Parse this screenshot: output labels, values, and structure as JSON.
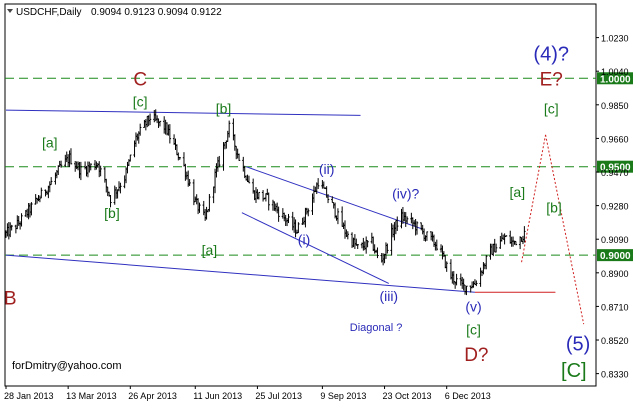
{
  "header": {
    "symbol_text": "USDCHF,Daily",
    "ohlc_text": "0.9094 0.9123 0.9094 0.9122"
  },
  "chart_data": {
    "type": "candlestick",
    "symbol": "USDCHF",
    "timeframe": "Daily",
    "last_price": 0.9122,
    "ylim": [
      0.826,
      1.042
    ],
    "y_ticks": [
      "1.0230",
      "1.0040",
      "0.9850",
      "0.9660",
      "0.9470",
      "0.9280",
      "0.9090",
      "0.8900",
      "0.8710",
      "0.8520",
      "0.8330"
    ],
    "x_ticks": [
      "28 Jan 2013",
      "13 Mar 2013",
      "26 Apr 2013",
      "11 Jun 2013",
      "25 Jul 2013",
      "9 Sep 2013",
      "23 Oct 2013",
      "6 Dec 2013"
    ],
    "price_path": [
      {
        "date": "2013-01-28",
        "price": 0.912
      },
      {
        "date": "2013-02-06",
        "price": 0.918
      },
      {
        "date": "2013-02-18",
        "price": 0.93
      },
      {
        "date": "2013-03-01",
        "price": 0.941
      },
      {
        "date": "2013-03-08",
        "price": 0.95
      },
      {
        "date": "2013-03-14",
        "price": 0.955
      },
      {
        "date": "2013-03-22",
        "price": 0.948
      },
      {
        "date": "2013-04-03",
        "price": 0.952
      },
      {
        "date": "2013-04-12",
        "price": 0.932
      },
      {
        "date": "2013-04-22",
        "price": 0.944
      },
      {
        "date": "2013-04-30",
        "price": 0.966
      },
      {
        "date": "2013-05-10",
        "price": 0.978
      },
      {
        "date": "2013-05-21",
        "price": 0.972
      },
      {
        "date": "2013-06-03",
        "price": 0.95
      },
      {
        "date": "2013-06-11",
        "price": 0.93
      },
      {
        "date": "2013-06-18",
        "price": 0.92
      },
      {
        "date": "2013-06-25",
        "price": 0.945
      },
      {
        "date": "2013-07-05",
        "price": 0.972
      },
      {
        "date": "2013-07-12",
        "price": 0.955
      },
      {
        "date": "2013-07-22",
        "price": 0.935
      },
      {
        "date": "2013-08-01",
        "price": 0.932
      },
      {
        "date": "2013-08-12",
        "price": 0.922
      },
      {
        "date": "2013-08-22",
        "price": 0.914
      },
      {
        "date": "2013-09-01",
        "price": 0.93
      },
      {
        "date": "2013-09-06",
        "price": 0.942
      },
      {
        "date": "2013-09-16",
        "price": 0.928
      },
      {
        "date": "2013-09-26",
        "price": 0.912
      },
      {
        "date": "2013-10-04",
        "price": 0.904
      },
      {
        "date": "2013-10-14",
        "price": 0.907
      },
      {
        "date": "2013-10-20",
        "price": 0.895
      },
      {
        "date": "2013-10-28",
        "price": 0.912
      },
      {
        "date": "2013-11-03",
        "price": 0.922
      },
      {
        "date": "2013-11-12",
        "price": 0.918
      },
      {
        "date": "2013-11-20",
        "price": 0.912
      },
      {
        "date": "2013-11-30",
        "price": 0.905
      },
      {
        "date": "2013-12-09",
        "price": 0.888
      },
      {
        "date": "2013-12-18",
        "price": 0.882
      },
      {
        "date": "2013-12-26",
        "price": 0.884
      },
      {
        "date": "2014-01-06",
        "price": 0.902
      },
      {
        "date": "2014-01-16",
        "price": 0.91
      },
      {
        "date": "2014-01-22",
        "price": 0.907
      },
      {
        "date": "2014-01-30",
        "price": 0.912
      }
    ],
    "horizontal_levels": [
      {
        "price": 1.0,
        "label": "1.0000"
      },
      {
        "price": 0.95,
        "label": "0.9500"
      },
      {
        "price": 0.9,
        "label": "0.9000"
      }
    ],
    "wave_labels": [
      {
        "text": "C",
        "date": "2013-05-03",
        "price": 0.996,
        "color": "#a02020",
        "size": 19
      },
      {
        "text": "[c]",
        "date": "2013-05-03",
        "price": 0.984,
        "color": "#1a7a1a",
        "size": 14
      },
      {
        "text": "[b]",
        "date": "2013-07-01",
        "price": 0.98,
        "color": "#1a7a1a",
        "size": 14
      },
      {
        "text": "[a]",
        "date": "2013-02-28",
        "price": 0.961,
        "color": "#1a7a1a",
        "size": 14
      },
      {
        "text": "[b]",
        "date": "2013-04-13",
        "price": 0.921,
        "color": "#1a7a1a",
        "size": 14
      },
      {
        "text": "[a]",
        "date": "2013-06-21",
        "price": 0.9,
        "color": "#1a7a1a",
        "size": 14
      },
      {
        "text": "B",
        "date": "2013-01-31",
        "price": 0.872,
        "color": "#a02020",
        "size": 19
      },
      {
        "text": "(ii)",
        "date": "2013-09-12",
        "price": 0.946,
        "color": "#2a2ab8",
        "size": 14
      },
      {
        "text": "(iv)?",
        "date": "2013-11-07",
        "price": 0.932,
        "color": "#2a2ab8",
        "size": 14
      },
      {
        "text": "(i)",
        "date": "2013-08-27",
        "price": 0.906,
        "color": "#2a2ab8",
        "size": 14
      },
      {
        "text": "(iii)",
        "date": "2013-10-26",
        "price": 0.874,
        "color": "#2a2ab8",
        "size": 14
      },
      {
        "text": "(v)",
        "date": "2013-12-25",
        "price": 0.868,
        "color": "#2a2ab8",
        "size": 14
      },
      {
        "text": "[c]",
        "date": "2013-12-25",
        "price": 0.855,
        "color": "#1a7a1a",
        "size": 14
      },
      {
        "text": "D?",
        "date": "2013-12-27",
        "price": 0.84,
        "color": "#a02020",
        "size": 19
      },
      {
        "text": "Diagonal ?",
        "date": "2013-10-17",
        "price": 0.857,
        "color": "#2a2ab8",
        "size": 11
      },
      {
        "text": "[a]",
        "date": "2014-01-25",
        "price": 0.933,
        "color": "#1a7a1a",
        "size": 14
      },
      {
        "text": "[b]",
        "date": "2014-02-20",
        "price": 0.924,
        "color": "#1a7a1a",
        "size": 14
      },
      {
        "text": "[c]",
        "date": "2014-02-18",
        "price": 0.98,
        "color": "#1a7a1a",
        "size": 14
      },
      {
        "text": "E?",
        "date": "2014-02-18",
        "price": 0.996,
        "color": "#a02020",
        "size": 19
      },
      {
        "text": "(4)?",
        "date": "2014-02-18",
        "price": 1.01,
        "color": "#2a2ab8",
        "size": 20
      },
      {
        "text": "(5)",
        "date": "2014-03-09",
        "price": 0.846,
        "color": "#2a2ab8",
        "size": 20
      },
      {
        "text": "[C]",
        "date": "2014-03-06",
        "price": 0.831,
        "color": "#1a7a1a",
        "size": 20
      }
    ],
    "trendlines": [
      {
        "from": {
          "date": "2013-01-28",
          "price": 0.982
        },
        "to": {
          "date": "2013-10-06",
          "price": 0.979
        },
        "color": "#3030c0"
      },
      {
        "from": {
          "date": "2013-01-28",
          "price": 0.9
        },
        "to": {
          "date": "2013-12-26",
          "price": 0.879
        },
        "color": "#3030c0"
      },
      {
        "from": {
          "date": "2013-07-17",
          "price": 0.95
        },
        "to": {
          "date": "2013-11-18",
          "price": 0.915
        },
        "color": "#3030c0"
      },
      {
        "from": {
          "date": "2013-07-14",
          "price": 0.924
        },
        "to": {
          "date": "2013-10-26",
          "price": 0.884
        },
        "color": "#3030c0"
      }
    ],
    "support_line": {
      "from": {
        "date": "2013-12-26",
        "price": 0.879
      },
      "to": {
        "date": "2014-02-21",
        "price": 0.879
      },
      "color": "#d02020"
    },
    "projection": [
      {
        "date": "2014-01-28",
        "price": 0.896
      },
      {
        "date": "2014-02-14",
        "price": 0.968
      },
      {
        "date": "2014-03-13",
        "price": 0.861
      }
    ]
  },
  "footer": {
    "watermark": "forDmitry@yahoo.com"
  }
}
